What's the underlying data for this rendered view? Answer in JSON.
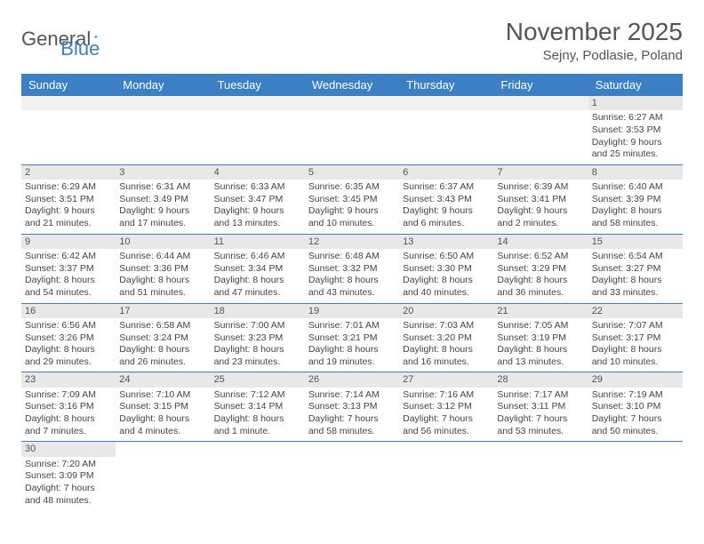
{
  "logo": {
    "part1": "General",
    "part2": "Blue"
  },
  "title": "November 2025",
  "location": "Sejny, Podlasie, Poland",
  "colors": {
    "header_bg": "#3b7fc4",
    "header_text": "#ffffff",
    "daynum_bg": "#e8e8e8",
    "text": "#444444",
    "title": "#555555"
  },
  "dayNames": [
    "Sunday",
    "Monday",
    "Tuesday",
    "Wednesday",
    "Thursday",
    "Friday",
    "Saturday"
  ],
  "weeks": [
    [
      {
        "n": "",
        "blank": true
      },
      {
        "n": "",
        "blank": true
      },
      {
        "n": "",
        "blank": true
      },
      {
        "n": "",
        "blank": true
      },
      {
        "n": "",
        "blank": true
      },
      {
        "n": "",
        "blank": true
      },
      {
        "n": "1",
        "sr": "Sunrise: 6:27 AM",
        "ss": "Sunset: 3:53 PM",
        "dl": "Daylight: 9 hours and 25 minutes."
      }
    ],
    [
      {
        "n": "2",
        "sr": "Sunrise: 6:29 AM",
        "ss": "Sunset: 3:51 PM",
        "dl": "Daylight: 9 hours and 21 minutes."
      },
      {
        "n": "3",
        "sr": "Sunrise: 6:31 AM",
        "ss": "Sunset: 3:49 PM",
        "dl": "Daylight: 9 hours and 17 minutes."
      },
      {
        "n": "4",
        "sr": "Sunrise: 6:33 AM",
        "ss": "Sunset: 3:47 PM",
        "dl": "Daylight: 9 hours and 13 minutes."
      },
      {
        "n": "5",
        "sr": "Sunrise: 6:35 AM",
        "ss": "Sunset: 3:45 PM",
        "dl": "Daylight: 9 hours and 10 minutes."
      },
      {
        "n": "6",
        "sr": "Sunrise: 6:37 AM",
        "ss": "Sunset: 3:43 PM",
        "dl": "Daylight: 9 hours and 6 minutes."
      },
      {
        "n": "7",
        "sr": "Sunrise: 6:39 AM",
        "ss": "Sunset: 3:41 PM",
        "dl": "Daylight: 9 hours and 2 minutes."
      },
      {
        "n": "8",
        "sr": "Sunrise: 6:40 AM",
        "ss": "Sunset: 3:39 PM",
        "dl": "Daylight: 8 hours and 58 minutes."
      }
    ],
    [
      {
        "n": "9",
        "sr": "Sunrise: 6:42 AM",
        "ss": "Sunset: 3:37 PM",
        "dl": "Daylight: 8 hours and 54 minutes."
      },
      {
        "n": "10",
        "sr": "Sunrise: 6:44 AM",
        "ss": "Sunset: 3:36 PM",
        "dl": "Daylight: 8 hours and 51 minutes."
      },
      {
        "n": "11",
        "sr": "Sunrise: 6:46 AM",
        "ss": "Sunset: 3:34 PM",
        "dl": "Daylight: 8 hours and 47 minutes."
      },
      {
        "n": "12",
        "sr": "Sunrise: 6:48 AM",
        "ss": "Sunset: 3:32 PM",
        "dl": "Daylight: 8 hours and 43 minutes."
      },
      {
        "n": "13",
        "sr": "Sunrise: 6:50 AM",
        "ss": "Sunset: 3:30 PM",
        "dl": "Daylight: 8 hours and 40 minutes."
      },
      {
        "n": "14",
        "sr": "Sunrise: 6:52 AM",
        "ss": "Sunset: 3:29 PM",
        "dl": "Daylight: 8 hours and 36 minutes."
      },
      {
        "n": "15",
        "sr": "Sunrise: 6:54 AM",
        "ss": "Sunset: 3:27 PM",
        "dl": "Daylight: 8 hours and 33 minutes."
      }
    ],
    [
      {
        "n": "16",
        "sr": "Sunrise: 6:56 AM",
        "ss": "Sunset: 3:26 PM",
        "dl": "Daylight: 8 hours and 29 minutes."
      },
      {
        "n": "17",
        "sr": "Sunrise: 6:58 AM",
        "ss": "Sunset: 3:24 PM",
        "dl": "Daylight: 8 hours and 26 minutes."
      },
      {
        "n": "18",
        "sr": "Sunrise: 7:00 AM",
        "ss": "Sunset: 3:23 PM",
        "dl": "Daylight: 8 hours and 23 minutes."
      },
      {
        "n": "19",
        "sr": "Sunrise: 7:01 AM",
        "ss": "Sunset: 3:21 PM",
        "dl": "Daylight: 8 hours and 19 minutes."
      },
      {
        "n": "20",
        "sr": "Sunrise: 7:03 AM",
        "ss": "Sunset: 3:20 PM",
        "dl": "Daylight: 8 hours and 16 minutes."
      },
      {
        "n": "21",
        "sr": "Sunrise: 7:05 AM",
        "ss": "Sunset: 3:19 PM",
        "dl": "Daylight: 8 hours and 13 minutes."
      },
      {
        "n": "22",
        "sr": "Sunrise: 7:07 AM",
        "ss": "Sunset: 3:17 PM",
        "dl": "Daylight: 8 hours and 10 minutes."
      }
    ],
    [
      {
        "n": "23",
        "sr": "Sunrise: 7:09 AM",
        "ss": "Sunset: 3:16 PM",
        "dl": "Daylight: 8 hours and 7 minutes."
      },
      {
        "n": "24",
        "sr": "Sunrise: 7:10 AM",
        "ss": "Sunset: 3:15 PM",
        "dl": "Daylight: 8 hours and 4 minutes."
      },
      {
        "n": "25",
        "sr": "Sunrise: 7:12 AM",
        "ss": "Sunset: 3:14 PM",
        "dl": "Daylight: 8 hours and 1 minute."
      },
      {
        "n": "26",
        "sr": "Sunrise: 7:14 AM",
        "ss": "Sunset: 3:13 PM",
        "dl": "Daylight: 7 hours and 58 minutes."
      },
      {
        "n": "27",
        "sr": "Sunrise: 7:16 AM",
        "ss": "Sunset: 3:12 PM",
        "dl": "Daylight: 7 hours and 56 minutes."
      },
      {
        "n": "28",
        "sr": "Sunrise: 7:17 AM",
        "ss": "Sunset: 3:11 PM",
        "dl": "Daylight: 7 hours and 53 minutes."
      },
      {
        "n": "29",
        "sr": "Sunrise: 7:19 AM",
        "ss": "Sunset: 3:10 PM",
        "dl": "Daylight: 7 hours and 50 minutes."
      }
    ],
    [
      {
        "n": "30",
        "sr": "Sunrise: 7:20 AM",
        "ss": "Sunset: 3:09 PM",
        "dl": "Daylight: 7 hours and 48 minutes."
      },
      {
        "n": "",
        "blank": true
      },
      {
        "n": "",
        "blank": true
      },
      {
        "n": "",
        "blank": true
      },
      {
        "n": "",
        "blank": true
      },
      {
        "n": "",
        "blank": true
      },
      {
        "n": "",
        "blank": true
      }
    ]
  ]
}
